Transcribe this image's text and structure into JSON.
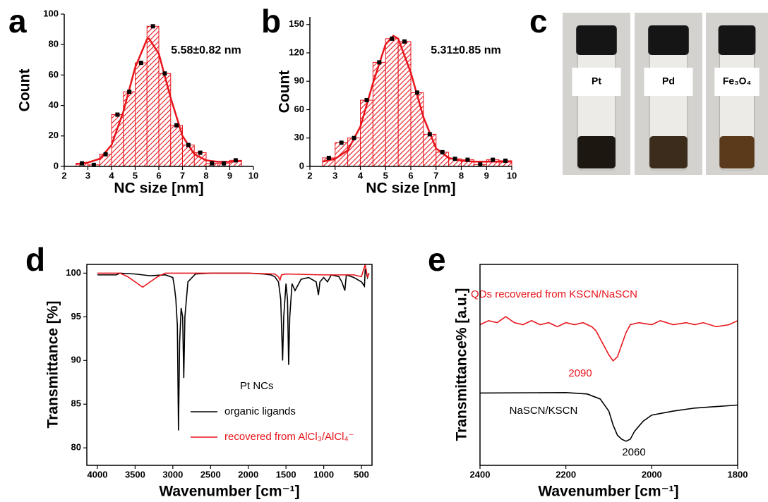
{
  "chart_data": [
    {
      "type": "histogram",
      "panel": "a",
      "xlabel": "NC size [nm]",
      "ylabel": "Count",
      "annotation": "5.58±0.82 nm",
      "color": "#e8141b",
      "bins": [
        2.5,
        3,
        3.5,
        4,
        4.5,
        5,
        5.5,
        6,
        6.5,
        7,
        7.5,
        8,
        8.5,
        9,
        9.5
      ],
      "values": [
        2,
        1,
        8,
        34,
        49,
        68,
        92,
        61,
        27,
        14,
        9,
        2,
        2,
        4
      ],
      "fit": {
        "x": [
          2.5,
          3,
          3.5,
          4,
          4.5,
          5,
          5.5,
          5.58,
          6,
          6.5,
          7,
          7.5,
          8,
          8.5,
          9,
          9.5
        ],
        "values": [
          1.5,
          2.5,
          5,
          14,
          36,
          65,
          83.5,
          84,
          74,
          45,
          20,
          8,
          4,
          3,
          3,
          3.5
        ]
      },
      "xlim": [
        2,
        10
      ],
      "xticks": [
        2,
        3,
        4,
        5,
        6,
        7,
        8,
        9,
        10
      ],
      "ylim": [
        0,
        100
      ],
      "yticks": [
        0,
        20,
        40,
        60,
        80,
        100
      ]
    },
    {
      "type": "histogram",
      "panel": "b",
      "xlabel": "NC size [nm]",
      "ylabel": "Count",
      "annotation": "5.31±0.85 nm",
      "color": "#e8141b",
      "bins": [
        2.5,
        3,
        3.5,
        4,
        4.5,
        5,
        5.5,
        6,
        6.5,
        7,
        7.5,
        8,
        8.5,
        9,
        9.5,
        10
      ],
      "values": [
        9,
        25,
        30,
        70,
        110,
        135,
        132,
        78,
        34,
        15,
        8,
        7,
        2,
        7,
        6
      ],
      "fit": {
        "x": [
          2.5,
          3,
          3.5,
          4,
          4.5,
          5,
          5.31,
          5.5,
          6,
          6.5,
          7,
          7.5,
          8,
          8.5,
          9,
          9.5,
          10
        ],
        "values": [
          5,
          8,
          17,
          42,
          88,
          129,
          138,
          135,
          99,
          52,
          19,
          9,
          6,
          5,
          5,
          5,
          5
        ]
      },
      "xlim": [
        2,
        10
      ],
      "xticks": [
        2,
        3,
        4,
        5,
        6,
        7,
        8,
        9,
        10
      ],
      "ylim": [
        0,
        158
      ],
      "yticks": [
        0,
        30,
        60,
        90,
        120,
        150
      ]
    },
    {
      "type": "photo",
      "panel": "c",
      "labels": [
        "Pt",
        "Pd",
        "Fe₃O₄"
      ]
    },
    {
      "type": "line",
      "panel": "d",
      "xlabel": "Wavenumber [cm⁻¹]",
      "ylabel": "Transmittance [%]",
      "legend_title": "Pt NCs",
      "series": [
        {
          "name": "organic ligands",
          "color": "#000000",
          "x": [
            4000,
            3750,
            3700,
            3500,
            3300,
            3100,
            3000,
            2980,
            2960,
            2940,
            2925,
            2910,
            2890,
            2870,
            2855,
            2840,
            2800,
            2700,
            2500,
            2000,
            1800,
            1700,
            1650,
            1600,
            1570,
            1545,
            1530,
            1500,
            1480,
            1465,
            1450,
            1420,
            1380,
            1300,
            1200,
            1100,
            1070,
            1050,
            1000,
            950,
            900,
            800,
            760,
            720,
            700,
            600,
            500,
            460,
            450,
            420,
            400
          ],
          "values": [
            99.8,
            99.8,
            100,
            99.9,
            99.7,
            99.8,
            99.5,
            98.5,
            97,
            94,
            82,
            92,
            96,
            95,
            88,
            95,
            99,
            99.9,
            100,
            100,
            99.9,
            99.8,
            99.6,
            99,
            97,
            90,
            95,
            98.8,
            97,
            89.5,
            95,
            98.8,
            98,
            99.3,
            99.5,
            99,
            97.5,
            99,
            99.5,
            99,
            99.8,
            99.6,
            99,
            98,
            99.8,
            99.5,
            99,
            98.5,
            100.5,
            99.5,
            100
          ]
        },
        {
          "name": "recovered from AlCl₃/AlCl₄⁻",
          "color": "#e8141b",
          "x": [
            4000,
            3700,
            3600,
            3500,
            3400,
            3300,
            3200,
            3100,
            3000,
            2500,
            2000,
            1650,
            1600,
            1580,
            1560,
            1500,
            1000,
            600,
            500,
            450,
            420,
            400
          ],
          "values": [
            100,
            100,
            99.6,
            99,
            98.4,
            99,
            99.6,
            100,
            100,
            100,
            100,
            99.9,
            99.6,
            99.2,
            99.8,
            99.9,
            99.8,
            99.8,
            99.6,
            101,
            99.5,
            100
          ]
        }
      ],
      "xlim": [
        4140,
        360
      ],
      "xticks": [
        4000,
        3500,
        3000,
        2500,
        2000,
        1500,
        1000,
        500
      ],
      "ylim": [
        78,
        101
      ],
      "yticks": [
        80,
        85,
        90,
        95,
        100
      ]
    },
    {
      "type": "line",
      "panel": "e",
      "xlabel": "Wavenumber [cm⁻¹]",
      "ylabel": "Transmittance% [a.u.]",
      "annotations": [
        "2090",
        "2060"
      ],
      "series": [
        {
          "name": "QDs recovered from KSCN/NaSCN",
          "color": "#e8141b",
          "x": [
            2400,
            2380,
            2360,
            2340,
            2320,
            2300,
            2280,
            2260,
            2240,
            2220,
            2200,
            2180,
            2160,
            2140,
            2130,
            2120,
            2110,
            2100,
            2090,
            2080,
            2070,
            2060,
            2050,
            2030,
            2000,
            1980,
            1950,
            1920,
            1900,
            1880,
            1850,
            1820,
            1800
          ],
          "values": [
            7.0,
            7.2,
            7.1,
            7.4,
            7.1,
            7.0,
            7.2,
            7.0,
            7.1,
            6.9,
            7.1,
            7.0,
            7.1,
            6.9,
            6.7,
            6.3,
            5.9,
            5.5,
            5.2,
            5.4,
            6.0,
            6.6,
            7.0,
            7.1,
            7.0,
            7.2,
            7.0,
            7.1,
            7.0,
            7.1,
            6.9,
            7.0,
            7.2
          ]
        },
        {
          "name": "NaSCN/KSCN",
          "color": "#000000",
          "x": [
            2400,
            2200,
            2150,
            2120,
            2100,
            2090,
            2080,
            2070,
            2060,
            2050,
            2040,
            2020,
            2000,
            1950,
            1900,
            1800
          ],
          "values": [
            3.6,
            3.62,
            3.55,
            3.3,
            2.7,
            2.0,
            1.5,
            1.3,
            1.2,
            1.3,
            1.7,
            2.2,
            2.5,
            2.7,
            2.85,
            3.0
          ]
        }
      ],
      "xlim": [
        2400,
        1800
      ],
      "xticks": [
        2400,
        2200,
        2000,
        1800
      ],
      "ylim": [
        0,
        10
      ]
    }
  ]
}
